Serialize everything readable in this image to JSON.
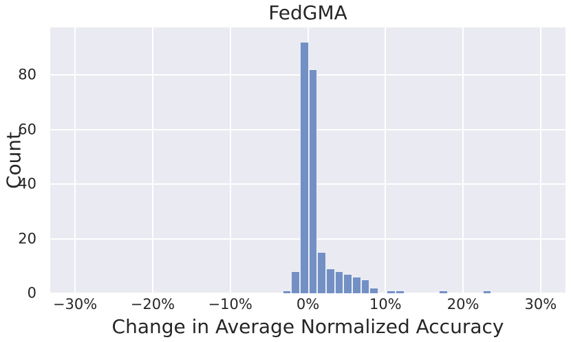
{
  "figure": {
    "title": "FedGMA",
    "x_axis_label": "Change in Average Normalized Accuracy",
    "y_axis_label": "Count"
  },
  "colors": {
    "figure_background": "#FFFFFF",
    "plot_background": "#EAEAF2",
    "grid": "#FFFFFF",
    "bar_fill": "#7390C4",
    "bar_edge": "#EAEEF8",
    "text": "#262626"
  },
  "chart_data": {
    "type": "bar",
    "subtype": "histogram",
    "title": "FedGMA",
    "xlabel": "Change in Average Normalized Accuracy",
    "ylabel": "Count",
    "xlim": [
      -33.2,
      33.2
    ],
    "ylim": [
      0,
      97.4
    ],
    "grid": true,
    "legend": false,
    "x_ticks": [
      {
        "value": -30,
        "label": "−30%"
      },
      {
        "value": -20,
        "label": "−20%"
      },
      {
        "value": -10,
        "label": "−10%"
      },
      {
        "value": 0,
        "label": "0%"
      },
      {
        "value": 10,
        "label": "10%"
      },
      {
        "value": 20,
        "label": "20%"
      },
      {
        "value": 30,
        "label": "30%"
      }
    ],
    "y_ticks": [
      {
        "value": 0,
        "label": "0"
      },
      {
        "value": 20,
        "label": "20"
      },
      {
        "value": 40,
        "label": "40"
      },
      {
        "value": 60,
        "label": "60"
      },
      {
        "value": 80,
        "label": "80"
      }
    ],
    "bin_width_pct": 1.12,
    "bins": [
      {
        "left_pct": -3.25,
        "count": 1
      },
      {
        "left_pct": -2.13,
        "count": 8
      },
      {
        "left_pct": -1.01,
        "count": 92
      },
      {
        "left_pct": 0.11,
        "count": 82
      },
      {
        "left_pct": 1.23,
        "count": 15
      },
      {
        "left_pct": 2.35,
        "count": 9
      },
      {
        "left_pct": 3.47,
        "count": 8
      },
      {
        "left_pct": 4.59,
        "count": 7
      },
      {
        "left_pct": 5.71,
        "count": 6
      },
      {
        "left_pct": 6.83,
        "count": 5
      },
      {
        "left_pct": 7.95,
        "count": 2
      },
      {
        "left_pct": 10.19,
        "count": 1
      },
      {
        "left_pct": 11.31,
        "count": 1
      },
      {
        "left_pct": 16.92,
        "count": 1
      },
      {
        "left_pct": 22.53,
        "count": 1
      }
    ]
  }
}
